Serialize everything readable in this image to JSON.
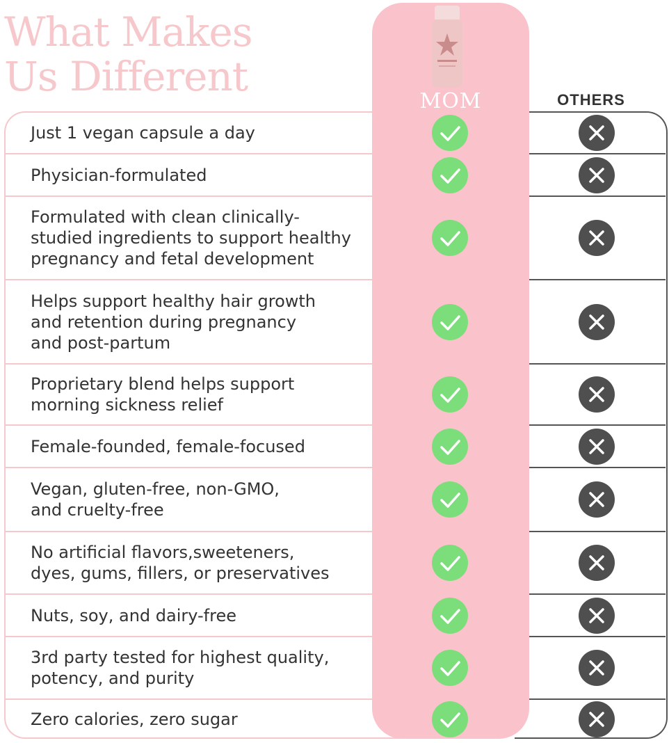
{
  "title": {
    "line1": "What Makes",
    "line2": "Us Different"
  },
  "columns": {
    "product": "MOM",
    "others": "OTHERS"
  },
  "colors": {
    "accent_pink": "#fac2cb",
    "check_green": "#7bde7b",
    "cross_dark": "#4f4f4f"
  },
  "icons": {
    "product_mark": "check-icon",
    "others_mark": "x-icon"
  },
  "rows": [
    {
      "text": "Just 1 vegan capsule a day"
    },
    {
      "text": "Physician-formulated"
    },
    {
      "text": "Formulated with clean clinically-\nstudied ingredients to support healthy\npregnancy and fetal development"
    },
    {
      "text": "Helps support healthy hair growth\nand retention during pregnancy\nand post-partum"
    },
    {
      "text": "Proprietary blend helps support\nmorning sickness relief"
    },
    {
      "text": "Female-founded, female-focused"
    },
    {
      "text": "Vegan, gluten-free, non-GMO,\nand cruelty-free"
    },
    {
      "text": "No artificial flavors,sweeteners,\ndyes, gums, fillers, or preservatives"
    },
    {
      "text": "Nuts, soy, and dairy-free"
    },
    {
      "text": "3rd party tested for highest quality,\npotency, and purity"
    },
    {
      "text": "Zero calories, zero sugar"
    }
  ]
}
